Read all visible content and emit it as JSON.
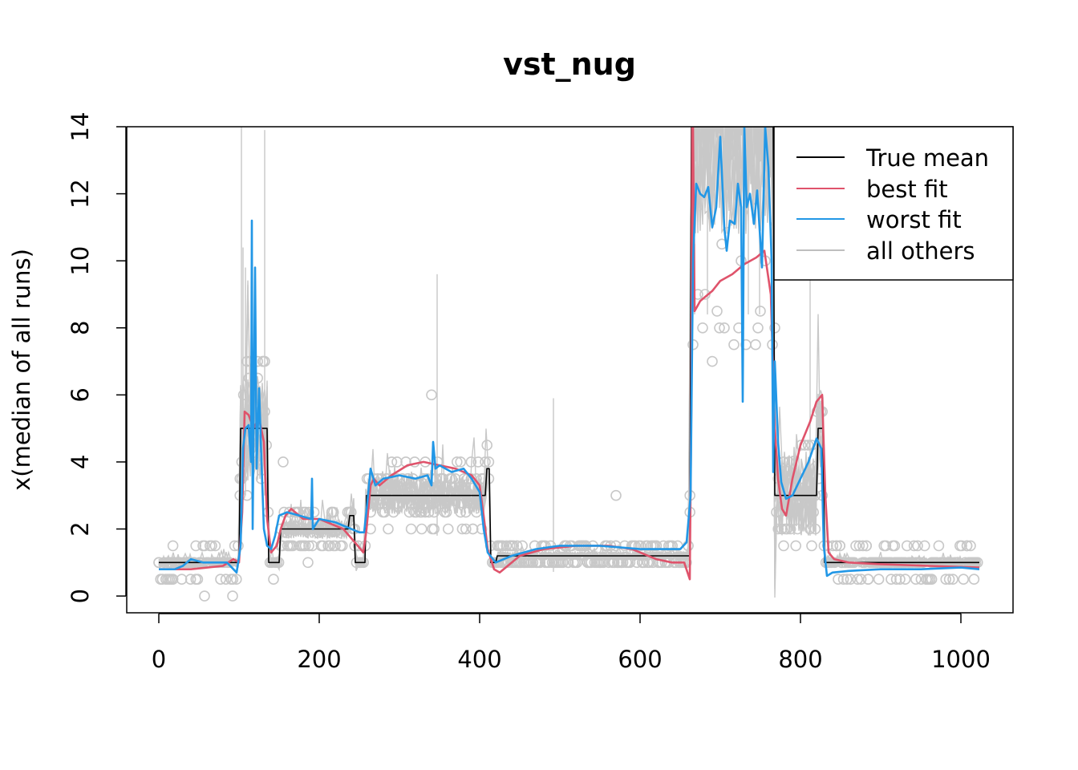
{
  "chart_data": {
    "type": "line",
    "title": "vst_nug",
    "xlabel": "",
    "ylabel": "x(median of all runs)",
    "xlim": [
      -40,
      1065
    ],
    "ylim": [
      -0.5,
      14
    ],
    "x_ticks": [
      0,
      200,
      400,
      600,
      800,
      1000
    ],
    "y_ticks": [
      0,
      2,
      4,
      6,
      8,
      10,
      12,
      14
    ],
    "legend": {
      "position": "top-right",
      "entries": [
        {
          "label": "True mean",
          "color": "#000000"
        },
        {
          "label": "best fit",
          "color": "#DF536B"
        },
        {
          "label": "worst fit",
          "color": "#2297E6"
        },
        {
          "label": "all others",
          "color": "#BEBEBE"
        }
      ]
    },
    "colors": {
      "true_mean": "#000000",
      "best_fit": "#DF536B",
      "worst_fit": "#2297E6",
      "others": "#C8C8C8"
    },
    "series": [
      {
        "name": "True mean",
        "color": "#000000",
        "points": [
          [
            0,
            1
          ],
          [
            100,
            1
          ],
          [
            102,
            5
          ],
          [
            135,
            5
          ],
          [
            137,
            1
          ],
          [
            150,
            1
          ],
          [
            152,
            2
          ],
          [
            236,
            2
          ],
          [
            238,
            2.4
          ],
          [
            243,
            2.4
          ],
          [
            245,
            1
          ],
          [
            257,
            1
          ],
          [
            259,
            3
          ],
          [
            407,
            3
          ],
          [
            409,
            3.8
          ],
          [
            412,
            3.8
          ],
          [
            414,
            1
          ],
          [
            420,
            1
          ],
          [
            422,
            1.2
          ],
          [
            560,
            1.2
          ],
          [
            562,
            1.2
          ],
          [
            662,
            1.2
          ],
          [
            664,
            14
          ],
          [
            766,
            14
          ],
          [
            768,
            3
          ],
          [
            820,
            3
          ],
          [
            822,
            5
          ],
          [
            828,
            5
          ],
          [
            830,
            1
          ],
          [
            838,
            1
          ],
          [
            840,
            1
          ],
          [
            1023,
            1
          ]
        ]
      },
      {
        "name": "best fit",
        "color": "#DF536B",
        "points": [
          [
            0,
            0.8
          ],
          [
            40,
            0.8
          ],
          [
            80,
            0.9
          ],
          [
            93,
            1.1
          ],
          [
            100,
            1.0
          ],
          [
            104,
            2.5
          ],
          [
            107,
            5.5
          ],
          [
            112,
            5.4
          ],
          [
            118,
            5.0
          ],
          [
            125,
            5.3
          ],
          [
            131,
            4.6
          ],
          [
            135,
            2.3
          ],
          [
            140,
            1.3
          ],
          [
            147,
            1.5
          ],
          [
            152,
            2.0
          ],
          [
            158,
            2.4
          ],
          [
            165,
            2.6
          ],
          [
            180,
            2.3
          ],
          [
            200,
            2.3
          ],
          [
            230,
            2.0
          ],
          [
            248,
            1.5
          ],
          [
            255,
            1.3
          ],
          [
            259,
            2.0
          ],
          [
            264,
            3.3
          ],
          [
            268,
            3.5
          ],
          [
            275,
            3.3
          ],
          [
            290,
            3.6
          ],
          [
            310,
            3.9
          ],
          [
            330,
            4.0
          ],
          [
            350,
            3.9
          ],
          [
            370,
            3.8
          ],
          [
            390,
            3.6
          ],
          [
            400,
            3.3
          ],
          [
            405,
            2.4
          ],
          [
            410,
            1.4
          ],
          [
            418,
            0.8
          ],
          [
            425,
            0.7
          ],
          [
            435,
            0.9
          ],
          [
            450,
            1.2
          ],
          [
            480,
            1.4
          ],
          [
            520,
            1.5
          ],
          [
            560,
            1.5
          ],
          [
            590,
            1.4
          ],
          [
            620,
            1.1
          ],
          [
            640,
            1.0
          ],
          [
            655,
            1.0
          ],
          [
            662,
            0.5
          ],
          [
            664,
            6
          ],
          [
            665,
            14
          ],
          [
            666,
            14
          ],
          [
            668,
            8.5
          ],
          [
            675,
            8.8
          ],
          [
            690,
            9.1
          ],
          [
            700,
            9.4
          ],
          [
            715,
            9.6
          ],
          [
            730,
            9.9
          ],
          [
            745,
            10.1
          ],
          [
            755,
            10.3
          ],
          [
            763,
            9.0
          ],
          [
            768,
            5.0
          ],
          [
            772,
            3.5
          ],
          [
            777,
            2.6
          ],
          [
            782,
            2.4
          ],
          [
            790,
            3.5
          ],
          [
            800,
            4.5
          ],
          [
            812,
            5.2
          ],
          [
            820,
            5.8
          ],
          [
            827,
            6.0
          ],
          [
            831,
            3.0
          ],
          [
            835,
            1.3
          ],
          [
            842,
            1.1
          ],
          [
            860,
            1.0
          ],
          [
            900,
            0.95
          ],
          [
            960,
            0.9
          ],
          [
            1023,
            0.85
          ]
        ]
      },
      {
        "name": "worst fit",
        "color": "#2297E6",
        "points": [
          [
            0,
            0.8
          ],
          [
            20,
            0.8
          ],
          [
            30,
            0.9
          ],
          [
            40,
            1.1
          ],
          [
            55,
            1.0
          ],
          [
            70,
            1.0
          ],
          [
            85,
            1.0
          ],
          [
            97,
            0.7
          ],
          [
            102,
            1.5
          ],
          [
            105,
            4.4
          ],
          [
            108,
            5.0
          ],
          [
            112,
            5.1
          ],
          [
            115,
            4.0
          ],
          [
            116,
            11.2
          ],
          [
            117,
            2.0
          ],
          [
            120,
            9.8
          ],
          [
            122,
            3.8
          ],
          [
            125,
            6.2
          ],
          [
            128,
            4.0
          ],
          [
            131,
            2.0
          ],
          [
            135,
            1.5
          ],
          [
            140,
            1.4
          ],
          [
            145,
            1.8
          ],
          [
            150,
            2.4
          ],
          [
            160,
            2.5
          ],
          [
            175,
            2.4
          ],
          [
            190,
            2.3
          ],
          [
            191,
            3.5
          ],
          [
            192,
            2.0
          ],
          [
            200,
            2.3
          ],
          [
            220,
            2.2
          ],
          [
            240,
            2.0
          ],
          [
            250,
            1.9
          ],
          [
            256,
            1.9
          ],
          [
            260,
            2.8
          ],
          [
            264,
            3.8
          ],
          [
            270,
            3.3
          ],
          [
            280,
            3.5
          ],
          [
            300,
            3.6
          ],
          [
            320,
            3.5
          ],
          [
            335,
            3.6
          ],
          [
            340,
            3.3
          ],
          [
            342,
            4.6
          ],
          [
            345,
            3.8
          ],
          [
            350,
            3.9
          ],
          [
            365,
            3.7
          ],
          [
            380,
            3.8
          ],
          [
            390,
            3.5
          ],
          [
            400,
            3.1
          ],
          [
            405,
            2.0
          ],
          [
            410,
            1.3
          ],
          [
            420,
            1.0
          ],
          [
            440,
            1.2
          ],
          [
            470,
            1.4
          ],
          [
            500,
            1.5
          ],
          [
            550,
            1.5
          ],
          [
            600,
            1.4
          ],
          [
            630,
            1.4
          ],
          [
            650,
            1.4
          ],
          [
            658,
            1.6
          ],
          [
            663,
            3.0
          ],
          [
            666,
            10.0
          ],
          [
            670,
            12.3
          ],
          [
            675,
            12.0
          ],
          [
            680,
            11.9
          ],
          [
            685,
            12.2
          ],
          [
            690,
            11.0
          ],
          [
            695,
            11.6
          ],
          [
            700,
            13.7
          ],
          [
            705,
            11.0
          ],
          [
            708,
            10.3
          ],
          [
            712,
            11.2
          ],
          [
            718,
            11.1
          ],
          [
            722,
            12.3
          ],
          [
            726,
            11.6
          ],
          [
            728,
            5.8
          ],
          [
            730,
            14
          ],
          [
            733,
            11.6
          ],
          [
            737,
            12.0
          ],
          [
            742,
            11.1
          ],
          [
            746,
            12.1
          ],
          [
            752,
            9.8
          ],
          [
            756,
            14
          ],
          [
            760,
            12.8
          ],
          [
            764,
            10.0
          ],
          [
            766,
            3.7
          ],
          [
            768,
            7.0
          ],
          [
            772,
            4.6
          ],
          [
            776,
            3.4
          ],
          [
            782,
            2.9
          ],
          [
            790,
            3.0
          ],
          [
            800,
            3.5
          ],
          [
            810,
            4.0
          ],
          [
            820,
            4.7
          ],
          [
            826,
            4.4
          ],
          [
            829,
            1.5
          ],
          [
            833,
            0.6
          ],
          [
            840,
            0.7
          ],
          [
            860,
            0.75
          ],
          [
            900,
            0.8
          ],
          [
            950,
            0.8
          ],
          [
            1000,
            0.85
          ],
          [
            1023,
            0.8
          ]
        ]
      }
    ],
    "others_note": "many grey replicate lines and open-circle points surrounding the fits"
  }
}
